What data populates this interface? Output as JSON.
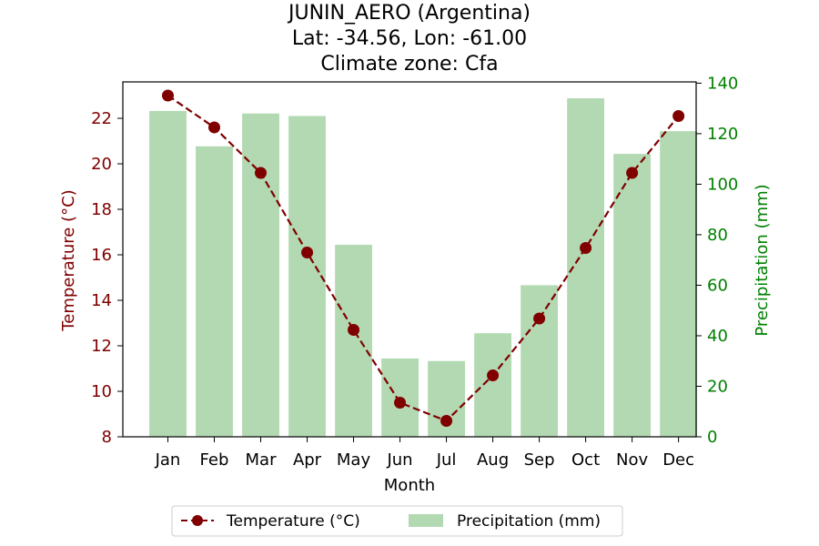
{
  "chart_data": {
    "type": "bar+line",
    "title_lines": [
      "JUNIN_AERO (Argentina)",
      "Lat: -34.56, Lon: -61.00",
      "Climate zone: Cfa"
    ],
    "categories": [
      "Jan",
      "Feb",
      "Mar",
      "Apr",
      "May",
      "Jun",
      "Jul",
      "Aug",
      "Sep",
      "Oct",
      "Nov",
      "Dec"
    ],
    "xlabel": "Month",
    "series": [
      {
        "name": "Temperature (°C)",
        "type": "line",
        "axis": "left",
        "color": "#800000",
        "values": [
          23.0,
          21.6,
          19.6,
          16.1,
          12.7,
          9.5,
          8.7,
          10.7,
          13.2,
          16.3,
          19.6,
          22.1
        ]
      },
      {
        "name": "Precipitation (mm)",
        "type": "bar",
        "axis": "right",
        "color": "#b2d9b2",
        "values": [
          129,
          115,
          128,
          127,
          76,
          31,
          30,
          41,
          60,
          134,
          112,
          121
        ]
      }
    ],
    "y_left": {
      "label": "Temperature (°C)",
      "color": "#800000",
      "ylim": [
        8,
        23.6
      ],
      "ticks": [
        "8",
        "10",
        "12",
        "14",
        "16",
        "18",
        "20",
        "22"
      ]
    },
    "y_right": {
      "label": "Precipitation (mm)",
      "color": "#008000",
      "ylim": [
        0,
        140.5
      ],
      "ticks": [
        "0",
        "20",
        "40",
        "60",
        "80",
        "100",
        "120",
        "140"
      ]
    },
    "grid": false,
    "legend_position": "bottom-center"
  }
}
